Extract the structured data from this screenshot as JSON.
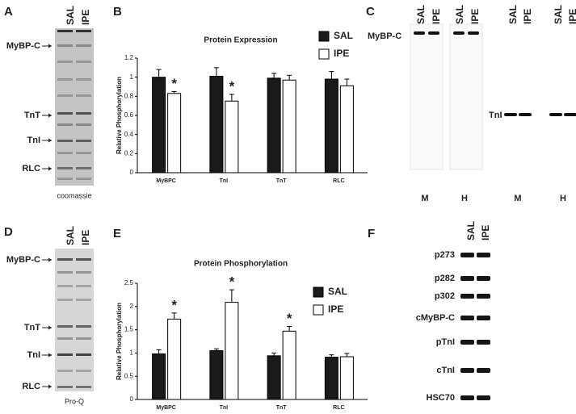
{
  "chart_data": [
    {
      "type": "bar",
      "panel_label": "B",
      "title": "Protein Expression",
      "y_label": "Relative Phosphorylation",
      "categories": [
        "MyBPC",
        "TnI",
        "TnT",
        "RLC"
      ],
      "series": [
        {
          "name": "SAL",
          "color": "#1a1a1a",
          "values": [
            1.0,
            1.01,
            0.99,
            0.98
          ],
          "errors": [
            0.08,
            0.09,
            0.05,
            0.08
          ],
          "significance": [
            null,
            null,
            null,
            null
          ]
        },
        {
          "name": "IPE",
          "color": "#ffffff",
          "values": [
            0.83,
            0.75,
            0.97,
            0.91
          ],
          "errors": [
            0.02,
            0.07,
            0.05,
            0.07
          ],
          "significance": [
            "*",
            "*",
            null,
            null
          ]
        }
      ],
      "ylim": [
        0,
        1.2
      ],
      "yticks": [
        0,
        0.2,
        0.4,
        0.6,
        0.8,
        1,
        1.2
      ],
      "grid": false,
      "legend": "top-right"
    },
    {
      "type": "bar",
      "panel_label": "E",
      "title": "Protein Phosphorylation",
      "y_label": "Relative Phosphorylation",
      "categories": [
        "MyBPC",
        "TnI",
        "TnT",
        "RLC"
      ],
      "series": [
        {
          "name": "SAL",
          "color": "#1a1a1a",
          "values": [
            0.98,
            1.05,
            0.94,
            0.91
          ],
          "errors": [
            0.09,
            0.04,
            0.06,
            0.05
          ],
          "significance": [
            null,
            null,
            null,
            null
          ]
        },
        {
          "name": "IPE",
          "color": "#ffffff",
          "values": [
            1.73,
            2.09,
            1.47,
            0.92
          ],
          "errors": [
            0.13,
            0.27,
            0.1,
            0.07
          ],
          "significance": [
            "*",
            "*",
            "*",
            null
          ]
        }
      ],
      "ylim": [
        0,
        2.5
      ],
      "yticks": [
        0,
        0.5,
        1,
        1.5,
        2,
        2.5
      ],
      "grid": false,
      "legend": "right"
    }
  ],
  "gel_panels": {
    "A": {
      "panel_label": "A",
      "lanes": [
        "SAL",
        "IPE"
      ],
      "markers": [
        "MyBP-C",
        "TnT",
        "TnI",
        "RLC"
      ],
      "caption": "coomassie"
    },
    "C": {
      "panel_label": "C",
      "lanes": [
        "SAL",
        "IPE",
        "SAL",
        "IPE",
        "SAL",
        "IPE",
        "SAL",
        "IPE"
      ],
      "markers": [
        "MyBP-C",
        "TnI"
      ],
      "tissues": [
        "M",
        "H",
        "M",
        "H"
      ]
    },
    "D": {
      "panel_label": "D",
      "lanes": [
        "SAL",
        "IPE"
      ],
      "markers": [
        "MyBP-C",
        "TnT",
        "TnI",
        "RLC"
      ],
      "caption": "Pro-Q"
    },
    "F": {
      "panel_label": "F",
      "lanes": [
        "SAL",
        "IPE"
      ],
      "rows": [
        "p273",
        "p282",
        "p302",
        "cMyBP-C",
        "pTnI",
        "cTnI",
        "HSC70"
      ]
    }
  }
}
